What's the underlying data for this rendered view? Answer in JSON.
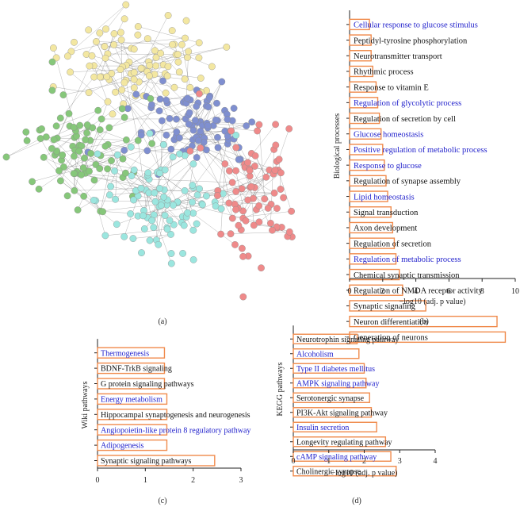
{
  "panel_labels": {
    "a": "(a)",
    "b": "(b)",
    "c": "(c)",
    "d": "(d)"
  },
  "colors": {
    "bar_edge": "#f08a4b",
    "highlight_text": "#2222cc",
    "normal_text": "#111111",
    "axis": "#222222",
    "node_yellow": "#f3e7a1",
    "node_blue": "#7f8fd0",
    "node_green": "#86c77a",
    "node_cyan": "#9be6df",
    "node_red": "#ef8a8a",
    "edge": "#555555"
  },
  "network": {
    "clusters": [
      {
        "name": "yellow",
        "color": "#f3e7a1",
        "count": 95
      },
      {
        "name": "blue",
        "color": "#7f8fd0",
        "count": 90
      },
      {
        "name": "green",
        "color": "#86c77a",
        "count": 85
      },
      {
        "name": "cyan",
        "color": "#9be6df",
        "count": 95
      },
      {
        "name": "red",
        "color": "#ef8a8a",
        "count": 80
      }
    ]
  },
  "chart_data": [
    {
      "id": "b",
      "type": "bar",
      "orientation": "horizontal",
      "ylabel": "Biological processes",
      "xlabel": "−log10 (adj. p value)",
      "xlim": [
        0,
        10
      ],
      "xticks": [
        "0",
        "2",
        "4",
        "6",
        "8",
        "10"
      ],
      "categories": [
        "Cellular response to glucose stimulus",
        "Peptidyl-tyrosine phosphorylation",
        "Neurotransmitter transport",
        "Rhythmic process",
        "Response to vitamin E",
        "Regulation of glycolytic process",
        "Regulation of secretion by cell",
        "Glucose homeostasis",
        "Positive regulation of metabolic process",
        "Response to glucose",
        "Regulation of synapse assembly",
        "Lipid homeostasis",
        "Signal transduction",
        "Axon development",
        "Regulation of secretion",
        "Regulation of metabolic process",
        "Chemical synaptic transmission",
        "Regulation of NMDA receptor activity",
        "Synaptic signaling",
        "Neuron differentiation",
        "Generation of neurons"
      ],
      "values": [
        1.2,
        1.3,
        1.3,
        1.4,
        1.6,
        1.7,
        1.8,
        1.9,
        2.0,
        2.1,
        2.2,
        2.3,
        2.5,
        2.6,
        2.7,
        2.8,
        3.0,
        3.2,
        4.6,
        8.9,
        9.4
      ],
      "highlighted": [
        true,
        false,
        false,
        false,
        false,
        true,
        false,
        true,
        true,
        true,
        false,
        true,
        false,
        false,
        false,
        true,
        false,
        false,
        false,
        false,
        false
      ]
    },
    {
      "id": "c",
      "type": "bar",
      "orientation": "horizontal",
      "ylabel": "Wiki pathways",
      "xlabel": "",
      "xlim": [
        0,
        3
      ],
      "xticks": [
        "0",
        "1",
        "2",
        "3"
      ],
      "categories": [
        "Thermogenesis",
        "BDNF-TrkB signaling",
        "G protein signaling pathways",
        "Energy metabolism",
        "Hippocampal synaptogenesis and neurogenesis",
        "Angiopoietin-like protein 8 regulatory pathway",
        "Adipogenesis",
        "Synaptic signaling pathways"
      ],
      "values": [
        1.4,
        1.4,
        1.4,
        1.45,
        1.45,
        1.45,
        1.45,
        2.45
      ],
      "highlighted": [
        true,
        false,
        false,
        true,
        false,
        true,
        true,
        false
      ]
    },
    {
      "id": "d",
      "type": "bar",
      "orientation": "horizontal",
      "ylabel": "KEGG pathways",
      "xlabel": "−log10 (adj. p value)",
      "xlim": [
        0,
        4
      ],
      "xticks": [
        "0",
        "1",
        "2",
        "3",
        "4"
      ],
      "categories": [
        "Neurotrophin signaling pathway",
        "Alcoholism",
        "Type II diabetes mellitus",
        "AMPK signaling pathway",
        "Serotonergic synapse",
        "PI3K-Akt signaling pathway",
        "Insulin secretion",
        "Longevity regulating pathway",
        "cAMP signaling pathway",
        "Cholinergic synapse"
      ],
      "values": [
        1.8,
        1.85,
        2.0,
        2.05,
        2.15,
        2.2,
        2.35,
        2.6,
        2.75,
        2.9
      ],
      "highlighted": [
        false,
        true,
        true,
        true,
        false,
        false,
        true,
        false,
        true,
        false
      ]
    }
  ]
}
